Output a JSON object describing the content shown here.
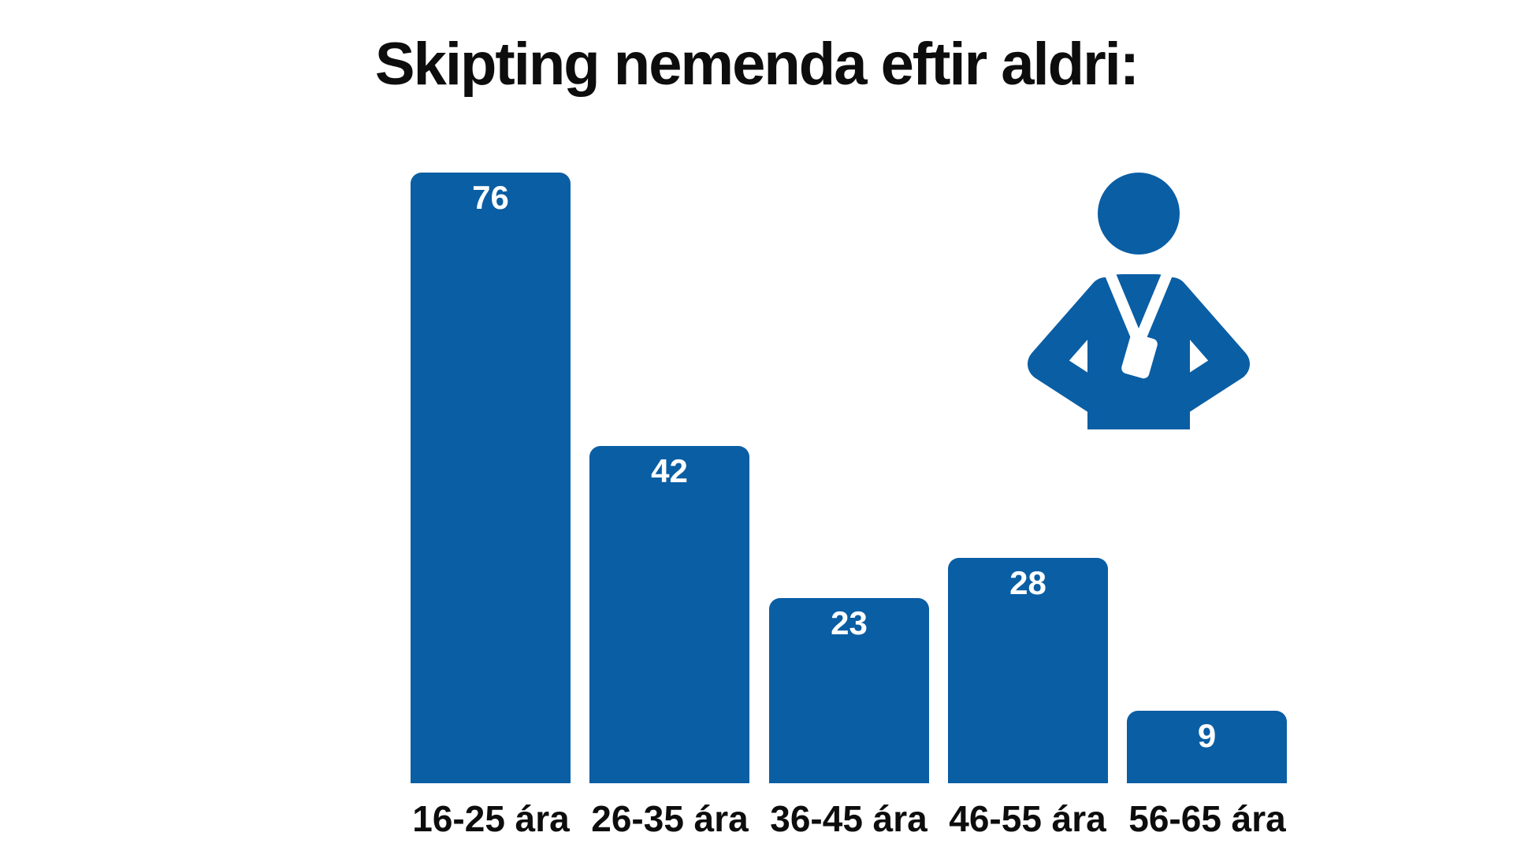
{
  "page": {
    "background": "#ffffff",
    "accent_blue": "#0a5ea4",
    "text_color": "#0d0d0d"
  },
  "title": "Skipting nemenda eftir aldri:",
  "icon": {
    "name": "person-with-lanyard",
    "color": "#0a5ea4",
    "lanyard_color": "#ffffff"
  },
  "chart_data": {
    "type": "bar",
    "title": "Skipting nemenda eftir aldri:",
    "categories": [
      "16-25 ára",
      "26-35 ára",
      "36-45 ára",
      "46-55 ára",
      "56-65 ára"
    ],
    "values": [
      76,
      42,
      23,
      28,
      9
    ],
    "xlabel": "",
    "ylabel": "",
    "ylim": [
      0,
      76
    ],
    "grid": false,
    "legend": "none",
    "bar_color": "#0a5ea4",
    "value_label_color": "#ffffff",
    "value_label_position": "inside-top",
    "axis_labels_position": "below-bars"
  }
}
